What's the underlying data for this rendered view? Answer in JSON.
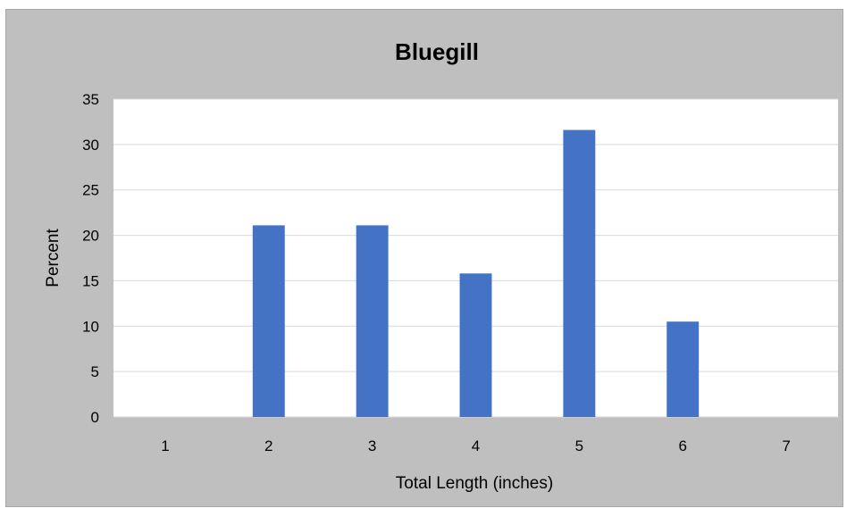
{
  "chart_data": {
    "type": "bar",
    "title": "Bluegill",
    "xlabel": "Total Length (inches)",
    "ylabel": "Percent",
    "categories": [
      "1",
      "2",
      "3",
      "4",
      "5",
      "6",
      "7"
    ],
    "values": [
      0,
      21.1,
      21.1,
      15.8,
      31.6,
      10.5,
      0
    ],
    "ylim": [
      0,
      35
    ],
    "yticks": [
      "0",
      "5",
      "10",
      "15",
      "20",
      "25",
      "30",
      "35"
    ],
    "grid": true,
    "legend": "none",
    "colors": {
      "bar": "#4472c4",
      "chart_background": "#bfbfbf",
      "plot_background": "#ffffff",
      "gridline": "#d9d9d9"
    }
  }
}
